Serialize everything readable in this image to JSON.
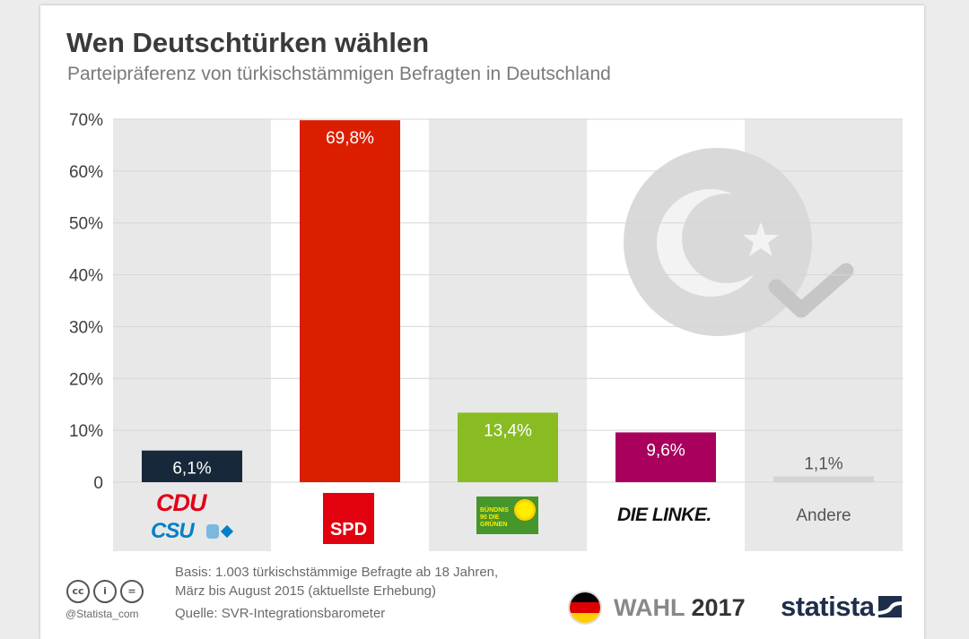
{
  "header": {
    "title": "Wen Deutschtürken wählen",
    "subtitle": "Parteipräferenz von türkischstämmigen Befragten in Deutschland"
  },
  "chart_data": {
    "type": "bar",
    "categories": [
      "CDU/CSU",
      "SPD",
      "Bündnis 90 / Die Grünen",
      "DIE LINKE.",
      "Andere"
    ],
    "values": [
      6.1,
      69.8,
      13.4,
      9.6,
      1.1
    ],
    "value_labels": [
      "6,1%",
      "69,8%",
      "13,4%",
      "9,6%",
      "1,1%"
    ],
    "bar_colors": [
      "#17283a",
      "#db1e00",
      "#88bc22",
      "#a8005c",
      "#d4d4d4"
    ],
    "value_label_colors": [
      "#ffffff",
      "#ffffff",
      "#ffffff",
      "#ffffff",
      "#555555"
    ],
    "y_ticks": [
      0,
      10,
      20,
      30,
      40,
      50,
      60,
      70
    ],
    "y_tick_labels": [
      "0",
      "10%",
      "20%",
      "30%",
      "40%",
      "50%",
      "60%",
      "70%"
    ],
    "ylim": [
      0,
      70
    ],
    "grid": true,
    "title": "Wen Deutschtürken wählen",
    "subtitle": "Parteipräferenz von türkischstämmigen Befragten in Deutschland"
  },
  "logos": {
    "cdu": "CDU",
    "csu": "CSU",
    "spd": "SPD",
    "gruene": "BÜNDNIS 90 DIE GRÜNEN",
    "linke": "DIE LINKE.",
    "andere": "Andere"
  },
  "footer": {
    "basis_line1": "Basis: 1.003 türkischstämmige Befragte ab 18 Jahren,",
    "basis_line2": "März bis August 2015 (aktuellste Erhebung)",
    "source": "Quelle: SVR-Integrationsbarometer",
    "handle": "@Statista_com",
    "cc_icons": [
      "cc-icon",
      "person-icon",
      "equals-icon"
    ],
    "wahl_word": "WAHL",
    "wahl_year": "2017",
    "brand": "statista"
  },
  "colors": {
    "stripe": "#e8e8e8",
    "grid": "#d6d6d6",
    "flag_black": "#000000",
    "flag_red": "#dd0000",
    "flag_gold": "#ffce00"
  }
}
